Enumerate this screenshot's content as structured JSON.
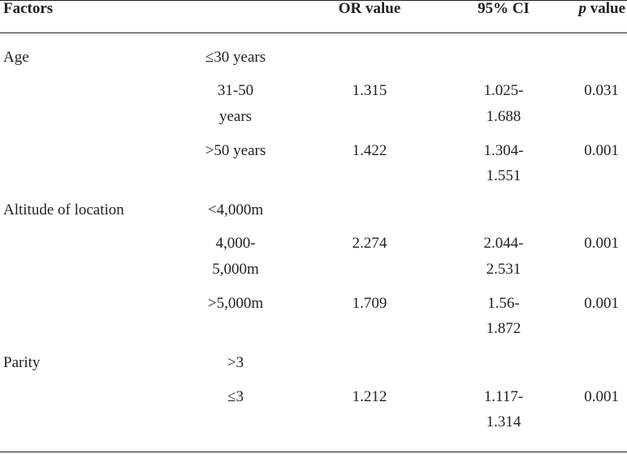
{
  "headers": {
    "factors": "Factors",
    "or_value": "OR value",
    "ci": "95% CI",
    "p_italic": "p",
    "p_rest": " value"
  },
  "groups": [
    {
      "factor": "Age",
      "rows": [
        {
          "level": [
            "≤30 years"
          ],
          "or": "",
          "ci": [],
          "p": ""
        },
        {
          "level": [
            "31-50",
            "years"
          ],
          "or": "1.315",
          "ci": [
            "1.025-",
            "1.688"
          ],
          "p": "0.031"
        },
        {
          "level": [
            ">50 years"
          ],
          "or": "1.422",
          "ci": [
            "1.304-",
            "1.551"
          ],
          "p": "0.001"
        }
      ]
    },
    {
      "factor": "Altitude of location",
      "rows": [
        {
          "level": [
            "<4,000m"
          ],
          "or": "",
          "ci": [],
          "p": ""
        },
        {
          "level": [
            "4,000-",
            "5,000m"
          ],
          "or": "2.274",
          "ci": [
            "2.044-",
            "2.531"
          ],
          "p": "0.001"
        },
        {
          "level": [
            ">5,000m"
          ],
          "or": "1.709",
          "ci": [
            "1.56-",
            "1.872"
          ],
          "p": "0.001"
        }
      ]
    },
    {
      "factor": "Parity",
      "rows": [
        {
          "level": [
            ">3"
          ],
          "or": "",
          "ci": [],
          "p": ""
        },
        {
          "level": [
            "≤3"
          ],
          "or": "1.212",
          "ci": [
            "1.117-",
            "1.314"
          ],
          "p": "0.001"
        }
      ]
    }
  ]
}
